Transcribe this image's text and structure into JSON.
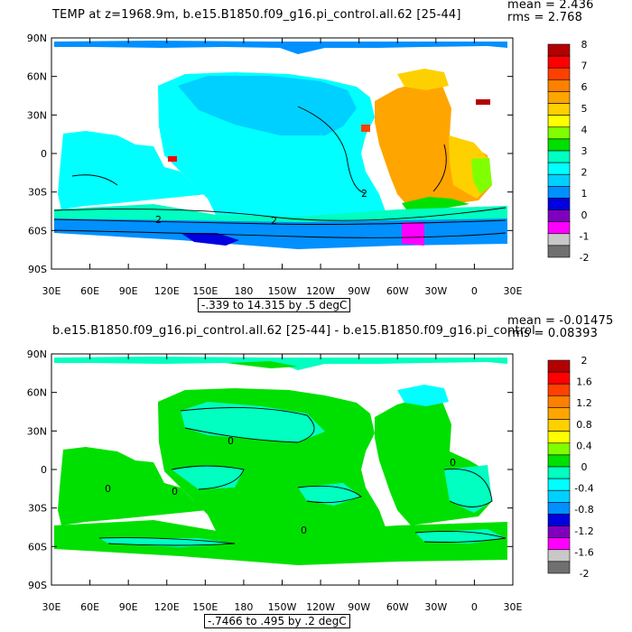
{
  "panels": [
    {
      "title": "TEMP at z=1968.9m, b.e15.B1850.f09_g16.pi_control.all.62 [25-44]",
      "mean_label": "mean = 2.436",
      "rms_label": "rms = 2.768",
      "range_label": "-.339 to 14.315 by .5 degC",
      "contour_labels": [
        "2",
        "2",
        "2"
      ],
      "colorbar": {
        "labels": [
          "8",
          "7",
          "6",
          "5",
          "4",
          "3",
          "2",
          "1",
          "0",
          "-1",
          "-2"
        ],
        "colors": [
          "#b30000",
          "#ff0000",
          "#ff4000",
          "#ff8000",
          "#ffa500",
          "#ffd000",
          "#ffff00",
          "#80ff00",
          "#00e000",
          "#00ffc0",
          "#00ffff",
          "#00d0ff",
          "#0090ff",
          "#0000e0",
          "#8000c0",
          "#ff00ff",
          "#c8c8c8",
          "#707070"
        ]
      }
    },
    {
      "title": "b.e15.B1850.f09_g16.pi_control.all.62 [25-44] - b.e15.B1850.f09_g16.pi_control",
      "mean_label": "mean = -0.01475",
      "rms_label": "rms = 0.08393",
      "range_label": "-.7466 to .495 by .2 degC",
      "contour_labels": [
        "0",
        "0",
        "0",
        "0",
        "0"
      ],
      "colorbar": {
        "labels": [
          "2",
          "1.6",
          "1.2",
          "0.8",
          "0.4",
          "0",
          "-0.4",
          "-0.8",
          "-1.2",
          "-1.6",
          "-2"
        ],
        "colors": [
          "#b30000",
          "#ff0000",
          "#ff4000",
          "#ff8000",
          "#ffa500",
          "#ffd000",
          "#ffff00",
          "#80ff00",
          "#00e000",
          "#00ffc0",
          "#00ffff",
          "#00d0ff",
          "#0090ff",
          "#0000e0",
          "#8000c0",
          "#ff00ff",
          "#c8c8c8",
          "#707070"
        ]
      }
    }
  ],
  "axes": {
    "lat_labels": [
      "90N",
      "60N",
      "30N",
      "0",
      "30S",
      "60S",
      "90S"
    ],
    "lon_labels": [
      "30E",
      "60E",
      "90E",
      "120E",
      "150E",
      "180",
      "150W",
      "120W",
      "90W",
      "60W",
      "30W",
      "0",
      "30E"
    ]
  }
}
